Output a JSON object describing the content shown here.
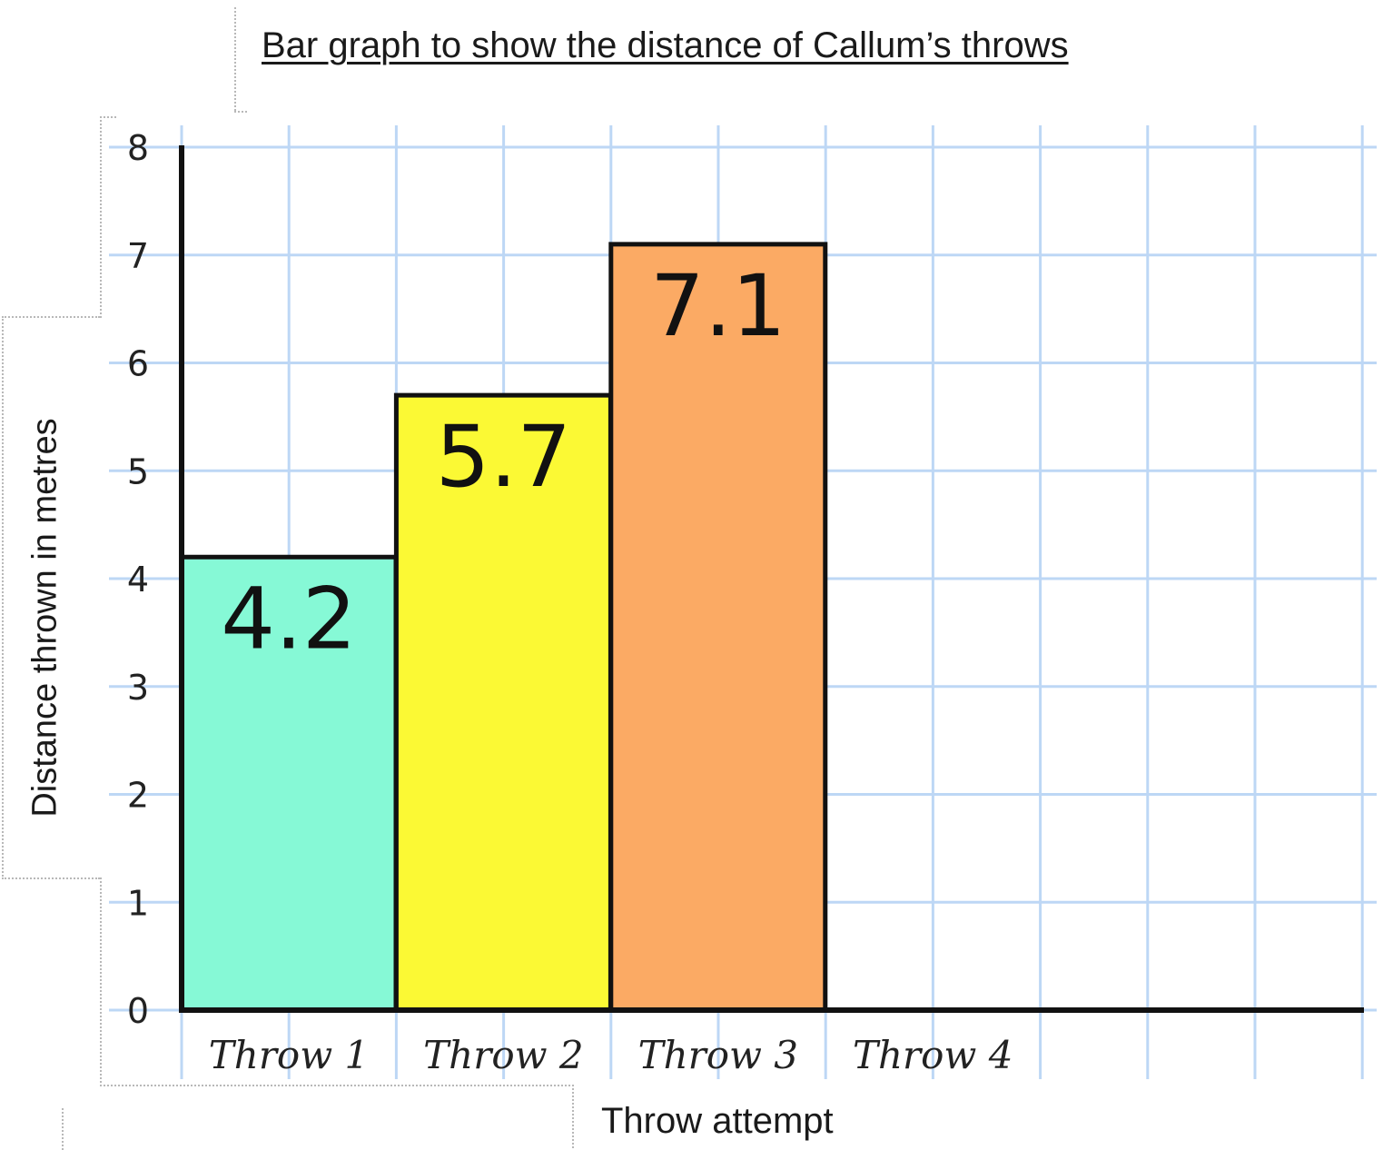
{
  "chart_data": {
    "type": "bar",
    "title": "Bar graph to show the distance of Callum’s throws",
    "xlabel": "Throw attempt",
    "ylabel": "Distance thrown in metres",
    "categories": [
      "Throw 1",
      "Throw 2",
      "Throw 3",
      "Throw 4"
    ],
    "values": [
      4.2,
      5.7,
      7.1,
      null
    ],
    "data_labels": [
      "4.2",
      "5.7",
      "7.1",
      ""
    ],
    "bar_colors": [
      "#86f9d6",
      "#fbf934",
      "#fbaa64",
      null
    ],
    "yticks": [
      "0",
      "1",
      "2",
      "3",
      "4",
      "5",
      "6",
      "7",
      "8"
    ],
    "ylim": [
      0,
      8
    ],
    "grid": true,
    "grid_color": "#bdd7f5"
  }
}
